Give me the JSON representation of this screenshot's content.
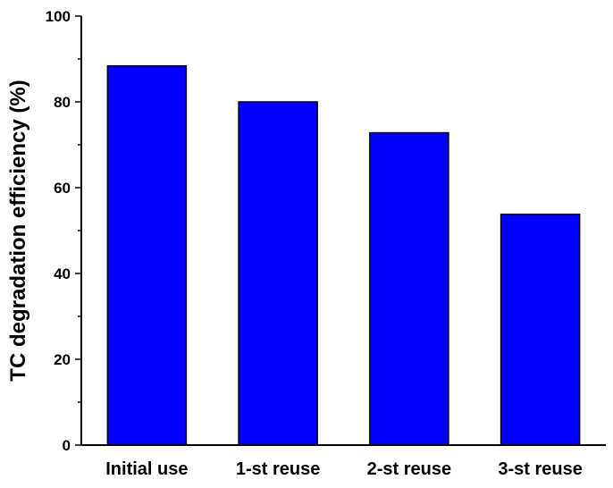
{
  "chart_data": {
    "type": "bar",
    "categories": [
      "Initial use",
      "1-st reuse",
      "2-st reuse",
      "3-st reuse"
    ],
    "values": [
      88.4,
      80.0,
      72.8,
      53.8
    ],
    "title": "",
    "xlabel": "",
    "ylabel": "TC degradation efficiency (%)",
    "ylim": [
      0,
      100
    ],
    "yticks": [
      0,
      20,
      40,
      60,
      80,
      100
    ],
    "grid": false,
    "bar_color": "#0000ff",
    "bar_edge_color": "#000000"
  }
}
